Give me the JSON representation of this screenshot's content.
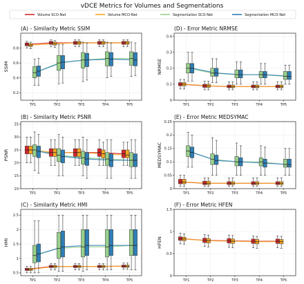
{
  "figure_title": "vDCE Metrics for Volumes and Segmentations",
  "colors": {
    "volume_sco": "#d62728",
    "volume_mco": "#f5a623",
    "seg_sco": "#98d08e",
    "seg_mco": "#2f7fb6"
  },
  "legend": [
    "Volume SCO-Net",
    "Volume MCO-Net",
    "Segmentation SCO-Net",
    "Segmentation MCO-Net"
  ],
  "chart_data": [
    {
      "type": "box",
      "title": "(A) - Similarity Metric SSIM",
      "ylabel": "SSIM",
      "categories": [
        "TP1",
        "TP2",
        "TP3",
        "TP4",
        "TP5"
      ],
      "ylim": [
        0.1,
        1.0
      ],
      "yticks": [
        0.2,
        0.4,
        0.6,
        0.8
      ],
      "series": [
        {
          "name": "Volume SCO-Net",
          "median": [
            0.85,
            0.87,
            0.87,
            0.87,
            0.87
          ],
          "q1": [
            0.83,
            0.85,
            0.85,
            0.85,
            0.85
          ],
          "q3": [
            0.87,
            0.89,
            0.89,
            0.89,
            0.89
          ],
          "wlo": [
            0.8,
            0.82,
            0.82,
            0.82,
            0.82
          ],
          "whi": [
            0.89,
            0.91,
            0.91,
            0.91,
            0.91
          ]
        },
        {
          "name": "Volume MCO-Net",
          "median": [
            0.84,
            0.86,
            0.87,
            0.87,
            0.87
          ],
          "q1": [
            0.82,
            0.84,
            0.85,
            0.85,
            0.85
          ],
          "q3": [
            0.86,
            0.88,
            0.89,
            0.89,
            0.89
          ],
          "wlo": [
            0.79,
            0.81,
            0.82,
            0.82,
            0.82
          ],
          "whi": [
            0.88,
            0.9,
            0.91,
            0.91,
            0.91
          ]
        },
        {
          "name": "Segmentation SCO-Net",
          "median": [
            0.47,
            0.6,
            0.64,
            0.66,
            0.66
          ],
          "q1": [
            0.4,
            0.5,
            0.53,
            0.56,
            0.57
          ],
          "q3": [
            0.55,
            0.7,
            0.74,
            0.75,
            0.75
          ],
          "wlo": [
            0.3,
            0.32,
            0.35,
            0.4,
            0.42
          ],
          "whi": [
            0.65,
            0.85,
            0.88,
            0.88,
            0.88
          ]
        },
        {
          "name": "Segmentation MCO-Net",
          "median": [
            0.49,
            0.61,
            0.64,
            0.65,
            0.64
          ],
          "q1": [
            0.42,
            0.52,
            0.55,
            0.56,
            0.56
          ],
          "q3": [
            0.56,
            0.7,
            0.73,
            0.74,
            0.74
          ],
          "wlo": [
            0.3,
            0.33,
            0.37,
            0.42,
            0.43
          ],
          "whi": [
            0.66,
            0.85,
            0.87,
            0.87,
            0.87
          ]
        }
      ]
    },
    {
      "type": "box",
      "title": "(D) - Error Metric NRMSE",
      "ylabel": "NRMSE",
      "categories": [
        "TP1",
        "TP2",
        "TP3",
        "TP4",
        "TP5"
      ],
      "ylim": [
        0.0,
        0.42
      ],
      "yticks": [
        0.0,
        0.1,
        0.2,
        0.3,
        0.4
      ],
      "series": [
        {
          "name": "Volume SCO-Net",
          "median": [
            0.1,
            0.09,
            0.085,
            0.085,
            0.085
          ],
          "q1": [
            0.09,
            0.08,
            0.078,
            0.078,
            0.078
          ],
          "q3": [
            0.11,
            0.1,
            0.095,
            0.095,
            0.095
          ],
          "wlo": [
            0.07,
            0.065,
            0.065,
            0.065,
            0.065
          ],
          "whi": [
            0.13,
            0.12,
            0.115,
            0.115,
            0.115
          ]
        },
        {
          "name": "Volume MCO-Net",
          "median": [
            0.1,
            0.09,
            0.085,
            0.085,
            0.085
          ],
          "q1": [
            0.09,
            0.08,
            0.078,
            0.078,
            0.078
          ],
          "q3": [
            0.11,
            0.1,
            0.095,
            0.095,
            0.095
          ],
          "wlo": [
            0.07,
            0.065,
            0.065,
            0.065,
            0.065
          ],
          "whi": [
            0.13,
            0.12,
            0.115,
            0.115,
            0.115
          ]
        },
        {
          "name": "Segmentation SCO-Net",
          "median": [
            0.2,
            0.17,
            0.16,
            0.16,
            0.15
          ],
          "q1": [
            0.17,
            0.15,
            0.14,
            0.14,
            0.13
          ],
          "q3": [
            0.23,
            0.2,
            0.19,
            0.18,
            0.18
          ],
          "wlo": [
            0.12,
            0.11,
            0.1,
            0.1,
            0.1
          ],
          "whi": [
            0.3,
            0.26,
            0.24,
            0.23,
            0.22
          ]
        },
        {
          "name": "Segmentation MCO-Net",
          "median": [
            0.2,
            0.17,
            0.16,
            0.16,
            0.15
          ],
          "q1": [
            0.17,
            0.15,
            0.14,
            0.14,
            0.13
          ],
          "q3": [
            0.23,
            0.2,
            0.19,
            0.18,
            0.18
          ],
          "wlo": [
            0.12,
            0.11,
            0.1,
            0.1,
            0.1
          ],
          "whi": [
            0.3,
            0.26,
            0.24,
            0.23,
            0.22
          ]
        }
      ]
    },
    {
      "type": "box",
      "title": "(B) - Similarity Metric PSNR",
      "ylabel": "PSNR",
      "categories": [
        "TP1",
        "TP2",
        "TP3",
        "TP4",
        "TP5"
      ],
      "ylim": [
        10,
        36
      ],
      "yticks": [
        10,
        15,
        20,
        25,
        30,
        35
      ],
      "series": [
        {
          "name": "Volume SCO-Net",
          "median": [
            25,
            24,
            24,
            24,
            23.5
          ],
          "q1": [
            23.5,
            22.5,
            22.5,
            22.5,
            22
          ],
          "q3": [
            26.5,
            25.5,
            25.5,
            25.5,
            25
          ],
          "wlo": [
            20,
            19,
            19,
            19,
            19
          ],
          "whi": [
            30,
            29,
            29,
            29,
            28
          ]
        },
        {
          "name": "Volume MCO-Net",
          "median": [
            25,
            24,
            24,
            23.5,
            23
          ],
          "q1": [
            23.5,
            22.5,
            22.5,
            22,
            22
          ],
          "q3": [
            26.5,
            25.5,
            25.5,
            25,
            25
          ],
          "wlo": [
            20,
            19,
            19,
            19,
            19
          ],
          "whi": [
            30,
            29,
            29,
            28,
            28
          ]
        },
        {
          "name": "Segmentation SCO-Net",
          "median": [
            25,
            23,
            22,
            21.5,
            21
          ],
          "q1": [
            22.5,
            20.5,
            19.5,
            19,
            18.5
          ],
          "q3": [
            27,
            25.5,
            24.5,
            24,
            24
          ],
          "wlo": [
            17,
            15,
            15,
            14,
            14
          ],
          "whi": [
            32,
            31,
            30,
            29,
            29
          ]
        },
        {
          "name": "Segmentation MCO-Net",
          "median": [
            24.5,
            22.5,
            21.5,
            21,
            21
          ],
          "q1": [
            22,
            20,
            19,
            18.5,
            18.5
          ],
          "q3": [
            26.5,
            25,
            24,
            23.5,
            23.5
          ],
          "wlo": [
            16,
            15,
            14,
            14,
            14
          ],
          "whi": [
            31,
            30,
            29,
            29,
            29
          ]
        }
      ]
    },
    {
      "type": "box",
      "title": "(E) - Error Metric MEDSYMAC",
      "ylabel": "MEDSYMAC",
      "categories": [
        "TP1",
        "TP2",
        "TP3",
        "TP4",
        "TP5"
      ],
      "ylim": [
        0.0,
        0.25
      ],
      "yticks": [
        0.0,
        0.05,
        0.1,
        0.15,
        0.2,
        0.25
      ],
      "series": [
        {
          "name": "Volume SCO-Net",
          "median": [
            0.025,
            0.02,
            0.02,
            0.02,
            0.02
          ],
          "q1": [
            0.018,
            0.015,
            0.015,
            0.015,
            0.015
          ],
          "q3": [
            0.035,
            0.028,
            0.026,
            0.026,
            0.026
          ],
          "wlo": [
            0.008,
            0.008,
            0.008,
            0.008,
            0.008
          ],
          "whi": [
            0.05,
            0.04,
            0.04,
            0.04,
            0.04
          ]
        },
        {
          "name": "Volume MCO-Net",
          "median": [
            0.025,
            0.02,
            0.02,
            0.02,
            0.02
          ],
          "q1": [
            0.018,
            0.015,
            0.015,
            0.015,
            0.015
          ],
          "q3": [
            0.035,
            0.028,
            0.026,
            0.026,
            0.026
          ],
          "wlo": [
            0.008,
            0.008,
            0.008,
            0.008,
            0.008
          ],
          "whi": [
            0.05,
            0.04,
            0.04,
            0.04,
            0.04
          ]
        },
        {
          "name": "Segmentation SCO-Net",
          "median": [
            0.14,
            0.11,
            0.1,
            0.1,
            0.09
          ],
          "q1": [
            0.12,
            0.09,
            0.085,
            0.085,
            0.08
          ],
          "q3": [
            0.16,
            0.13,
            0.12,
            0.115,
            0.11
          ],
          "wlo": [
            0.08,
            0.05,
            0.05,
            0.05,
            0.05
          ],
          "whi": [
            0.21,
            0.19,
            0.17,
            0.16,
            0.15
          ]
        },
        {
          "name": "Segmentation MCO-Net",
          "median": [
            0.135,
            0.105,
            0.1,
            0.095,
            0.09
          ],
          "q1": [
            0.115,
            0.09,
            0.085,
            0.08,
            0.08
          ],
          "q3": [
            0.155,
            0.125,
            0.115,
            0.11,
            0.11
          ],
          "wlo": [
            0.08,
            0.05,
            0.05,
            0.05,
            0.05
          ],
          "whi": [
            0.2,
            0.18,
            0.16,
            0.155,
            0.15
          ]
        }
      ]
    },
    {
      "type": "box",
      "title": "(C) - Similarity Metric HMI",
      "ylabel": "HMI",
      "categories": [
        "TP1",
        "TP2",
        "TP3",
        "TP4",
        "TP5"
      ],
      "ylim": [
        0.4,
        2.7
      ],
      "yticks": [
        0.5,
        1.0,
        1.5,
        2.0,
        2.5
      ],
      "series": [
        {
          "name": "Volume SCO-Net",
          "median": [
            0.62,
            0.72,
            0.72,
            0.72,
            0.73
          ],
          "q1": [
            0.58,
            0.68,
            0.68,
            0.68,
            0.69
          ],
          "q3": [
            0.66,
            0.76,
            0.76,
            0.76,
            0.77
          ],
          "wlo": [
            0.5,
            0.6,
            0.6,
            0.6,
            0.62
          ],
          "whi": [
            0.72,
            0.82,
            0.82,
            0.82,
            0.84
          ]
        },
        {
          "name": "Volume MCO-Net",
          "median": [
            0.62,
            0.72,
            0.72,
            0.72,
            0.73
          ],
          "q1": [
            0.58,
            0.68,
            0.68,
            0.68,
            0.69
          ],
          "q3": [
            0.66,
            0.76,
            0.76,
            0.76,
            0.77
          ],
          "wlo": [
            0.5,
            0.6,
            0.6,
            0.6,
            0.62
          ],
          "whi": [
            0.72,
            0.82,
            0.82,
            0.82,
            0.84
          ]
        },
        {
          "name": "Segmentation SCO-Net",
          "median": [
            1.1,
            1.35,
            1.4,
            1.4,
            1.45
          ],
          "q1": [
            0.85,
            1.0,
            1.05,
            1.05,
            1.1
          ],
          "q3": [
            1.45,
            1.9,
            2.0,
            2.0,
            2.0
          ],
          "wlo": [
            0.5,
            0.55,
            0.55,
            0.6,
            0.6
          ],
          "whi": [
            2.3,
            2.5,
            2.5,
            2.5,
            2.5
          ]
        },
        {
          "name": "Segmentation MCO-Net",
          "median": [
            1.15,
            1.4,
            1.45,
            1.45,
            1.45
          ],
          "q1": [
            0.88,
            1.05,
            1.1,
            1.1,
            1.1
          ],
          "q3": [
            1.5,
            1.95,
            2.0,
            2.0,
            2.0
          ],
          "wlo": [
            0.5,
            0.55,
            0.6,
            0.6,
            0.6
          ],
          "whi": [
            2.3,
            2.5,
            2.5,
            2.5,
            2.5
          ]
        }
      ]
    },
    {
      "type": "box",
      "title": "(F) - Error Metric HFEN",
      "ylabel": "HFEN",
      "categories": [
        "TP1",
        "TP2",
        "TP3",
        "TP4",
        "TP5"
      ],
      "ylim": [
        0.0,
        1.5
      ],
      "yticks": [
        0.0,
        0.5,
        1.0,
        1.5
      ],
      "series": [
        {
          "name": "Volume SCO-Net",
          "median": [
            0.84,
            0.8,
            0.79,
            0.78,
            0.78
          ],
          "q1": [
            0.8,
            0.75,
            0.74,
            0.73,
            0.73
          ],
          "q3": [
            0.88,
            0.85,
            0.84,
            0.83,
            0.83
          ],
          "wlo": [
            0.72,
            0.66,
            0.64,
            0.63,
            0.63
          ],
          "whi": [
            0.96,
            0.93,
            0.92,
            0.9,
            0.9
          ]
        },
        {
          "name": "Volume MCO-Net",
          "median": [
            0.83,
            0.79,
            0.78,
            0.77,
            0.77
          ],
          "q1": [
            0.79,
            0.74,
            0.73,
            0.72,
            0.72
          ],
          "q3": [
            0.87,
            0.84,
            0.83,
            0.82,
            0.82
          ],
          "wlo": [
            0.71,
            0.65,
            0.63,
            0.62,
            0.62
          ],
          "whi": [
            0.95,
            0.92,
            0.91,
            0.89,
            0.89
          ]
        },
        {
          "name": "Segmentation SCO-Net",
          "median": [],
          "q1": [],
          "q3": [],
          "wlo": [],
          "whi": []
        },
        {
          "name": "Segmentation MCO-Net",
          "median": [],
          "q1": [],
          "q3": [],
          "wlo": [],
          "whi": []
        }
      ]
    }
  ]
}
